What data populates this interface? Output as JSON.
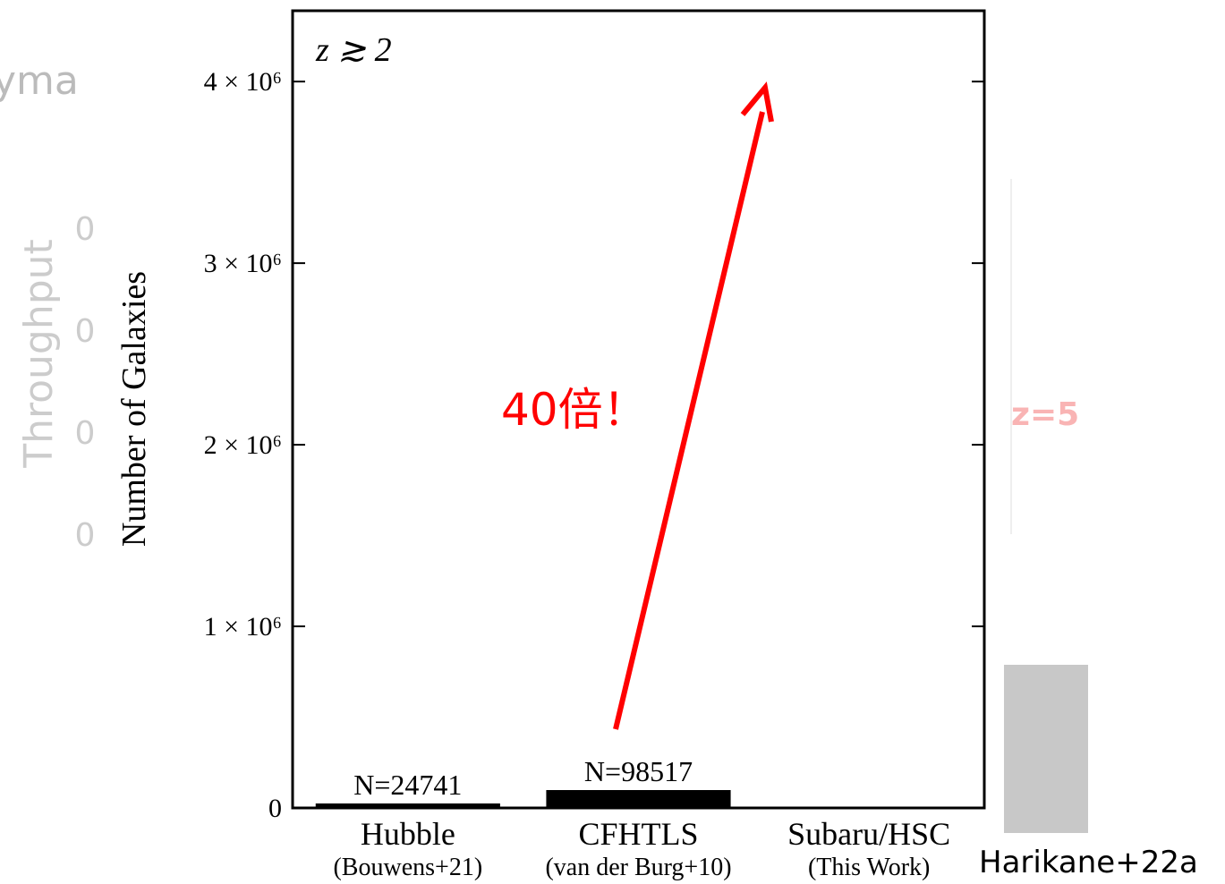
{
  "chart_data": {
    "type": "bar",
    "annotation": "z ≳ 2",
    "ylabel": "Number of Galaxies",
    "categories": [
      "Hubble",
      "CFHTLS",
      "Subaru/HSC"
    ],
    "category_sublabels": [
      "(Bouwens+21)",
      "(van der Burg+10)",
      "(This Work)"
    ],
    "values": [
      24741,
      98517,
      null
    ],
    "value_labels": [
      "N=24741",
      "N=98517",
      null
    ],
    "color": "#000000",
    "ylim": [
      0,
      4390000
    ],
    "yticks": [
      0,
      {
        "value": 1000000,
        "label": "1 × 10⁶"
      },
      {
        "value": 2000000,
        "label": "2 × 10⁶"
      },
      {
        "value": 3000000,
        "label": "3 × 10⁶"
      },
      {
        "value": 4000000,
        "label": "4 × 10⁶"
      }
    ],
    "arrow_label": "40倍！",
    "credit": "Harikane+22a"
  },
  "background": {
    "axis_label": "Throughput",
    "ticks": [
      "0",
      "0",
      "0",
      "0"
    ],
    "label": "z=5",
    "fragment": "yma"
  }
}
